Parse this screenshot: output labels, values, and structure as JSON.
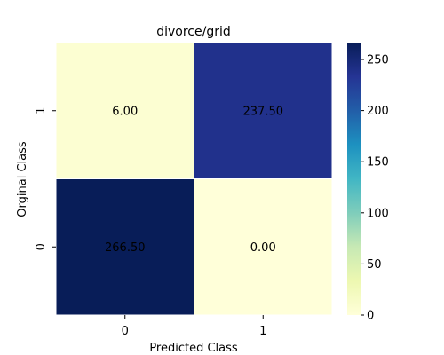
{
  "chart_data": {
    "type": "heatmap",
    "title": "divorce/grid",
    "xlabel": "Predicted Class",
    "ylabel": "Orginal Class",
    "x_categories": [
      "0",
      "1"
    ],
    "y_categories": [
      "1",
      "0"
    ],
    "values": [
      [
        6.0,
        237.5
      ],
      [
        266.5,
        0.0
      ]
    ],
    "value_labels": [
      [
        "6.00",
        "237.50"
      ],
      [
        "266.50",
        "0.00"
      ]
    ],
    "colorscale": "YlGnBu",
    "vmin": 0,
    "vmax": 266.5,
    "colorbar_ticks": [
      "0",
      "50",
      "100",
      "150",
      "200",
      "250"
    ],
    "colorbar_tick_values": [
      0,
      50,
      100,
      150,
      200,
      250
    ]
  }
}
